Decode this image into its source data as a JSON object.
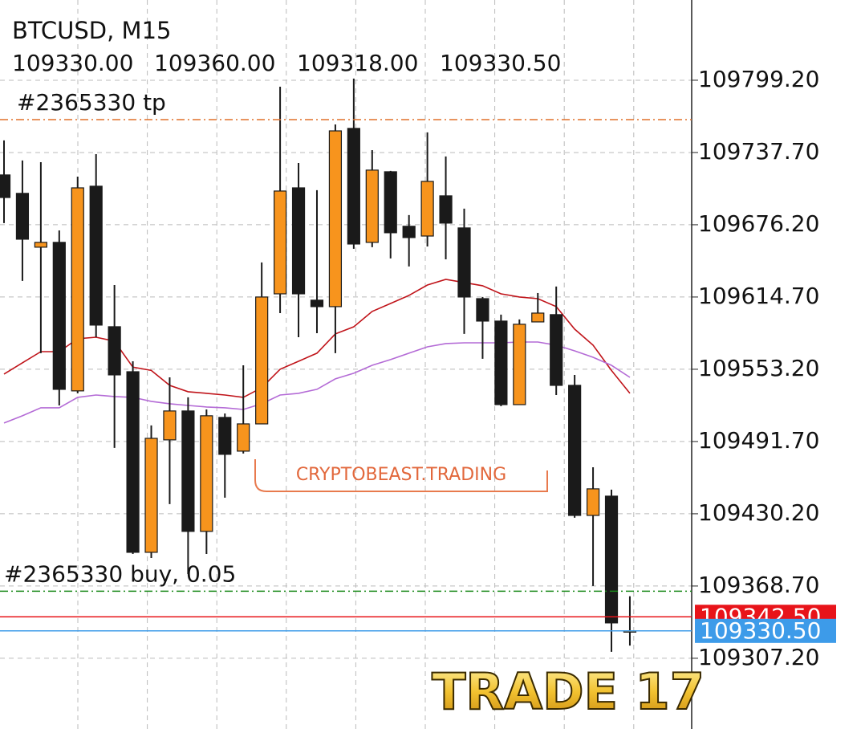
{
  "chart_data": {
    "type": "candlestick",
    "title": "BTCUSD, M15",
    "ohlc_labels": [
      "109330.00",
      "109360.00",
      "109318.00",
      "109330.50"
    ],
    "up_color": "#f7941d",
    "down_color": "#1a1a1a",
    "candles": {
      "open": [
        109718.6,
        109702.9,
        109657.1,
        109661.2,
        109534.8,
        109709.0,
        109589.4,
        109551.1,
        109397.4,
        109493.1,
        109517.7,
        109415.2,
        109512.2,
        109483.5,
        109506.7,
        109617.4,
        109707.6,
        109612.0,
        109606.5,
        109758.2,
        109661.2,
        109721.3,
        109674.9,
        109666.6,
        109700.8,
        109673.5,
        109613.3,
        109594.2,
        109523.1,
        109593.5,
        109599.7,
        109539.5,
        109428.8,
        109445.2,
        109330.0
      ],
      "high": [
        109748.0,
        109730.9,
        109729.5,
        109671.4,
        109717.2,
        109736.3,
        109624.9,
        109560.0,
        109505.4,
        109546.3,
        109529.3,
        109519.0,
        109515.6,
        109556.6,
        109644.1,
        109793.7,
        109728.8,
        109705.6,
        109761.6,
        109800.6,
        109739.7,
        109722.0,
        109684.4,
        109754.8,
        109734.3,
        109689.9,
        109614.7,
        109599.7,
        109595.6,
        109618.1,
        109623.6,
        109548.4,
        109469.8,
        109450.7,
        109360.0
      ],
      "low": [
        109677.6,
        109628.4,
        109566.9,
        109522.4,
        109532.7,
        109580.5,
        109486.3,
        109396.0,
        109392.6,
        109438.4,
        109378.9,
        109396.0,
        109443.9,
        109481.5,
        109506.7,
        109601.0,
        109580.5,
        109583.9,
        109566.9,
        109655.7,
        109657.1,
        109647.5,
        109640.7,
        109657.7,
        109646.8,
        109583.3,
        109562.1,
        109521.8,
        109523.1,
        109593.5,
        109531.3,
        109426.8,
        109368.7,
        109312.7,
        109318.0
      ],
      "close": [
        109699.4,
        109663.9,
        109661.2,
        109536.1,
        109707.6,
        109590.8,
        109548.4,
        109397.4,
        109494.4,
        109517.7,
        109415.2,
        109513.6,
        109480.8,
        109506.7,
        109614.7,
        109704.9,
        109617.4,
        109606.5,
        109756.1,
        109659.8,
        109722.7,
        109669.4,
        109665.3,
        109713.1,
        109677.6,
        109614.7,
        109594.2,
        109523.1,
        109591.5,
        109601.0,
        109539.5,
        109428.8,
        109451.4,
        109337.3,
        109330.5
      ]
    },
    "ma_lines": [
      {
        "color": "#c0141a",
        "values": [
          109549.1,
          109558.7,
          109568.2,
          109568.2,
          109579.2,
          109580.5,
          109577.1,
          109555.0,
          109552.2,
          109539.5,
          109534.1,
          109532.7,
          109531.3,
          109529.3,
          109537.5,
          109553.2,
          109560.0,
          109566.9,
          109583.3,
          109589.4,
          109602.4,
          109609.2,
          109616.1,
          109624.9,
          109629.7,
          109627.0,
          109624.3,
          109617.4,
          109614.7,
          109613.3,
          109606.5,
          109587.4,
          109573.7,
          109552.2,
          109532.7
        ]
      },
      {
        "color": "#b46bd6",
        "values": [
          109507.4,
          109513.6,
          109520.4,
          109520.4,
          109529.3,
          109531.3,
          109530.0,
          109529.3,
          109525.9,
          109523.8,
          109522.4,
          109521.1,
          109520.4,
          109519.0,
          109523.8,
          109531.3,
          109532.7,
          109536.1,
          109545.0,
          109549.8,
          109556.6,
          109561.4,
          109566.9,
          109572.3,
          109575.1,
          109575.7,
          109575.7,
          109575.7,
          109576.4,
          109576.4,
          109573.7,
          109568.9,
          109563.4,
          109556.6,
          109546.3
        ]
      }
    ],
    "ylim": [
      109247.0,
      109867.5
    ],
    "yticks": [
      {
        "value": 109799.2,
        "label": "109799.20"
      },
      {
        "value": 109737.7,
        "label": "109737.70"
      },
      {
        "value": 109676.2,
        "label": "109676.20"
      },
      {
        "value": 109614.7,
        "label": "109614.70"
      },
      {
        "value": 109553.2,
        "label": "109553.20"
      },
      {
        "value": 109491.7,
        "label": "109491.70"
      },
      {
        "value": 109430.2,
        "label": "109430.20"
      },
      {
        "value": 109368.7,
        "label": "109368.70"
      },
      {
        "value": 109307.2,
        "label": "109307.20"
      }
    ],
    "grid": true,
    "levels": [
      {
        "label": "#2365330 tp",
        "value": 109765.7,
        "color": "#e0702a"
      },
      {
        "label": "#2365330 buy, 0.05",
        "value": 109364.3,
        "color": "#1a8a1a"
      }
    ],
    "ask": {
      "value": 109342.5,
      "label": "109342.50",
      "color": "#e8141a"
    },
    "bid": {
      "value": 109330.5,
      "label": "109330.50",
      "color": "#3d9be9"
    },
    "watermark": "CRYPTOBEAST.TRADING",
    "caption": "TRADE 17"
  }
}
